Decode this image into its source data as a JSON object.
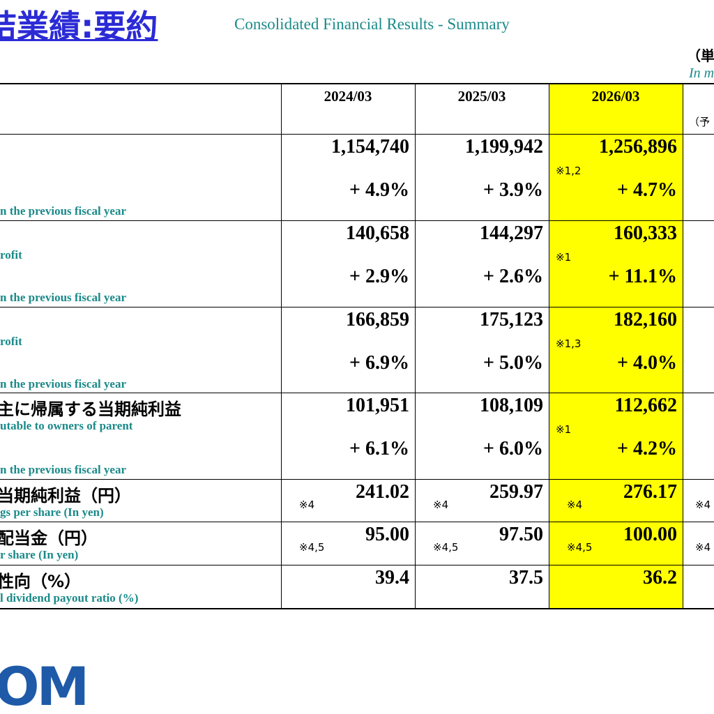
{
  "header": {
    "title": "結業績:要約",
    "subtitle": "Consolidated Financial Results - Summary",
    "unit_ja": "（単",
    "unit_en": "In m"
  },
  "table": {
    "columns": [
      "2024/03",
      "2025/03",
      "2026/03"
    ],
    "forecast_label": "（予",
    "rows": [
      {
        "label_growth": "n the previous fiscal year",
        "cells": [
          {
            "value": "1,154,740",
            "growth": "+ 4.9%"
          },
          {
            "value": "1,199,942",
            "growth": "+ 3.9%"
          },
          {
            "value": "1,256,896",
            "growth": "+ 4.7%",
            "note": "※1,2"
          }
        ]
      },
      {
        "label_en": "rofit",
        "label_growth": "n the previous fiscal year",
        "cells": [
          {
            "value": "140,658",
            "growth": "+ 2.9%"
          },
          {
            "value": "144,297",
            "growth": "+ 2.6%"
          },
          {
            "value": "160,333",
            "growth": "+ 11.1%",
            "note": "※1"
          }
        ]
      },
      {
        "label_en": "rofit",
        "label_growth": "n the previous fiscal year",
        "cells": [
          {
            "value": "166,859",
            "growth": "+ 6.9%"
          },
          {
            "value": "175,123",
            "growth": "+ 5.0%"
          },
          {
            "value": "182,160",
            "growth": "+ 4.0%",
            "note": "※1,3"
          }
        ]
      },
      {
        "label_ja": "主に帰属する当期純利益",
        "label_en": "utable to owners of parent",
        "label_growth": "n the previous fiscal year",
        "cells": [
          {
            "value": "101,951",
            "growth": "+ 6.1%"
          },
          {
            "value": "108,109",
            "growth": "+ 6.0%"
          },
          {
            "value": "112,662",
            "growth": "+ 4.2%",
            "note": "※1"
          }
        ]
      },
      {
        "label_ja": "当期純利益（円）",
        "label_en": "gs per share (In yen)",
        "cells": [
          {
            "value": "241.02",
            "note": "※4"
          },
          {
            "value": "259.97",
            "note": "※4"
          },
          {
            "value": "276.17",
            "note": "※4"
          }
        ],
        "forecast_note": "※4"
      },
      {
        "label_ja": "配当金（円）",
        "label_en": "r share (In yen)",
        "cells": [
          {
            "value": "95.00",
            "note": "※4,5"
          },
          {
            "value": "97.50",
            "note": "※4,5"
          },
          {
            "value": "100.00",
            "note": "※4,5"
          }
        ],
        "forecast_note": "※4"
      },
      {
        "label_ja": "性向（%）",
        "label_en": "l dividend payout ratio (%)",
        "cells": [
          {
            "value": "39.4"
          },
          {
            "value": "37.5"
          },
          {
            "value": "36.2"
          }
        ]
      }
    ]
  },
  "logo": "OM"
}
